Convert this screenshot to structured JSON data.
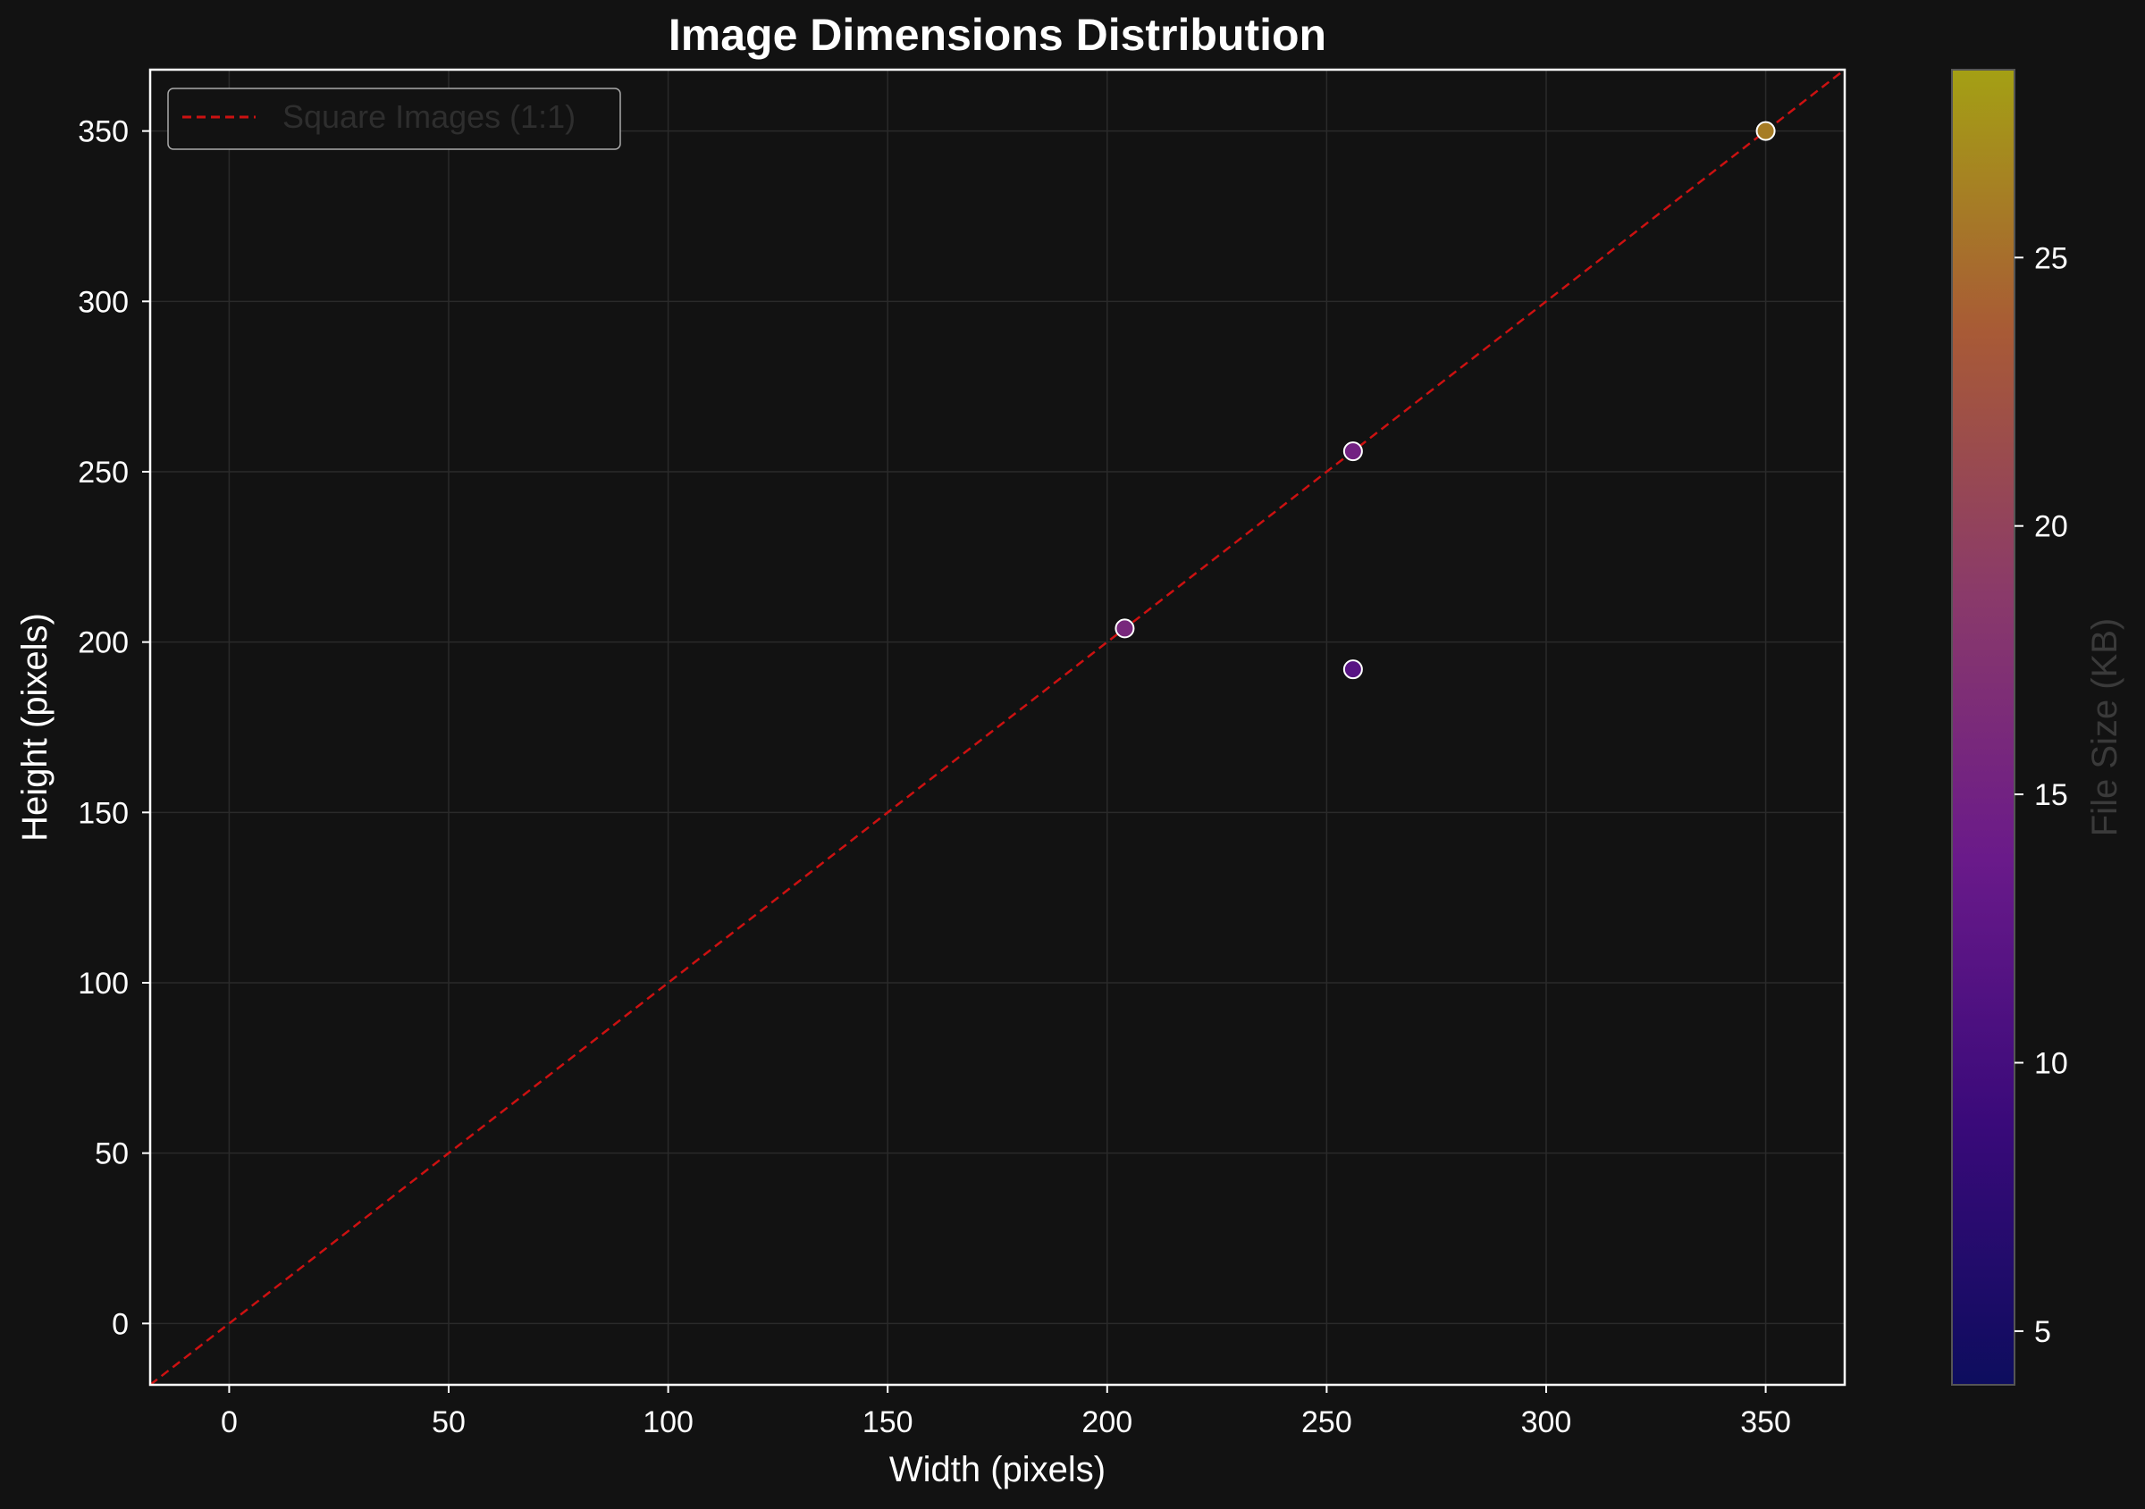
{
  "chart_data": {
    "type": "scatter",
    "title": "Image Dimensions Distribution",
    "xlabel": "Width (pixels)",
    "ylabel": "Height (pixels)",
    "xlim": [
      -18,
      368
    ],
    "ylim": [
      -18,
      368
    ],
    "xticks": [
      0,
      50,
      100,
      150,
      200,
      250,
      300,
      350
    ],
    "yticks": [
      0,
      50,
      100,
      150,
      200,
      250,
      300,
      350
    ],
    "grid": true,
    "points": [
      {
        "x": 204,
        "y": 204,
        "file_size_kb": 16
      },
      {
        "x": 256,
        "y": 256,
        "file_size_kb": 15
      },
      {
        "x": 256,
        "y": 192,
        "file_size_kb": 12
      },
      {
        "x": 350,
        "y": 350,
        "file_size_kb": 26
      }
    ],
    "reference_line": {
      "label": "Square Images (1:1)",
      "slope": 1,
      "color": "#cc1111",
      "style": "dashed"
    },
    "legend": {
      "position": "top-left",
      "entries": [
        "Square Images (1:1)"
      ]
    },
    "colorbar": {
      "label": "File Size (KB)",
      "range": [
        4,
        28.5
      ],
      "ticks": [
        5,
        10,
        15,
        20,
        25
      ],
      "colormap": "plasma-like",
      "stops": [
        "#0d0d5e",
        "#3a0a7a",
        "#6a1a8a",
        "#8a3a6a",
        "#a85a36",
        "#a4a014"
      ]
    },
    "colors": {
      "background": "#121212",
      "axes": "#ffffff",
      "grid": "#2a2a2a"
    }
  }
}
